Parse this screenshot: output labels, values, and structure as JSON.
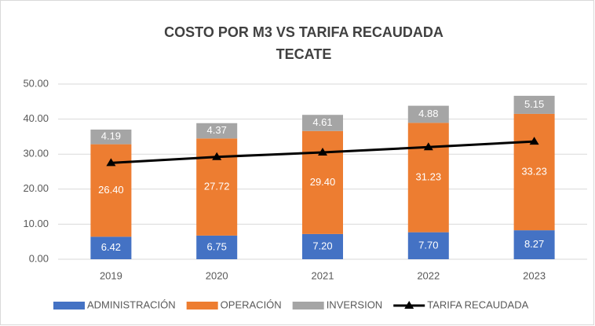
{
  "chart_data": {
    "type": "bar",
    "stacked": true,
    "title": "COSTO POR M3 VS TARIFA RECAUDADA",
    "subtitle": "TECATE",
    "categories": [
      "2019",
      "2020",
      "2021",
      "2022",
      "2023"
    ],
    "series": [
      {
        "name": "ADMINISTRACIÓN",
        "color": "#4472c4",
        "values": [
          6.42,
          6.75,
          7.2,
          7.7,
          8.27
        ],
        "value_labels": [
          "6.42",
          "6.75",
          "7.20",
          "7.70",
          "8.27"
        ]
      },
      {
        "name": "OPERACIÓN",
        "color": "#ed7d31",
        "values": [
          26.4,
          27.72,
          29.4,
          31.23,
          33.23
        ],
        "value_labels": [
          "26.40",
          "27.72",
          "29.40",
          "31.23",
          "33.23"
        ]
      },
      {
        "name": "INVERSION",
        "color": "#a5a5a5",
        "values": [
          4.19,
          4.37,
          4.61,
          4.88,
          5.15
        ],
        "value_labels": [
          "4.19",
          "4.37",
          "4.61",
          "4.88",
          "5.15"
        ]
      },
      {
        "name": "TARIFA RECAUDADA",
        "color": "#000000",
        "type": "line",
        "values": [
          27.5,
          29.2,
          30.5,
          32.0,
          33.6
        ]
      }
    ],
    "ylim": [
      0,
      50
    ],
    "yticks": [
      {
        "value": 0,
        "label": "0.00"
      },
      {
        "value": 10,
        "label": "10.00"
      },
      {
        "value": 20,
        "label": "20.00"
      },
      {
        "value": 30,
        "label": "30.00"
      },
      {
        "value": 40,
        "label": "40.00"
      },
      {
        "value": 50,
        "label": "50.00"
      }
    ],
    "grid": true,
    "legend": "bottom"
  }
}
